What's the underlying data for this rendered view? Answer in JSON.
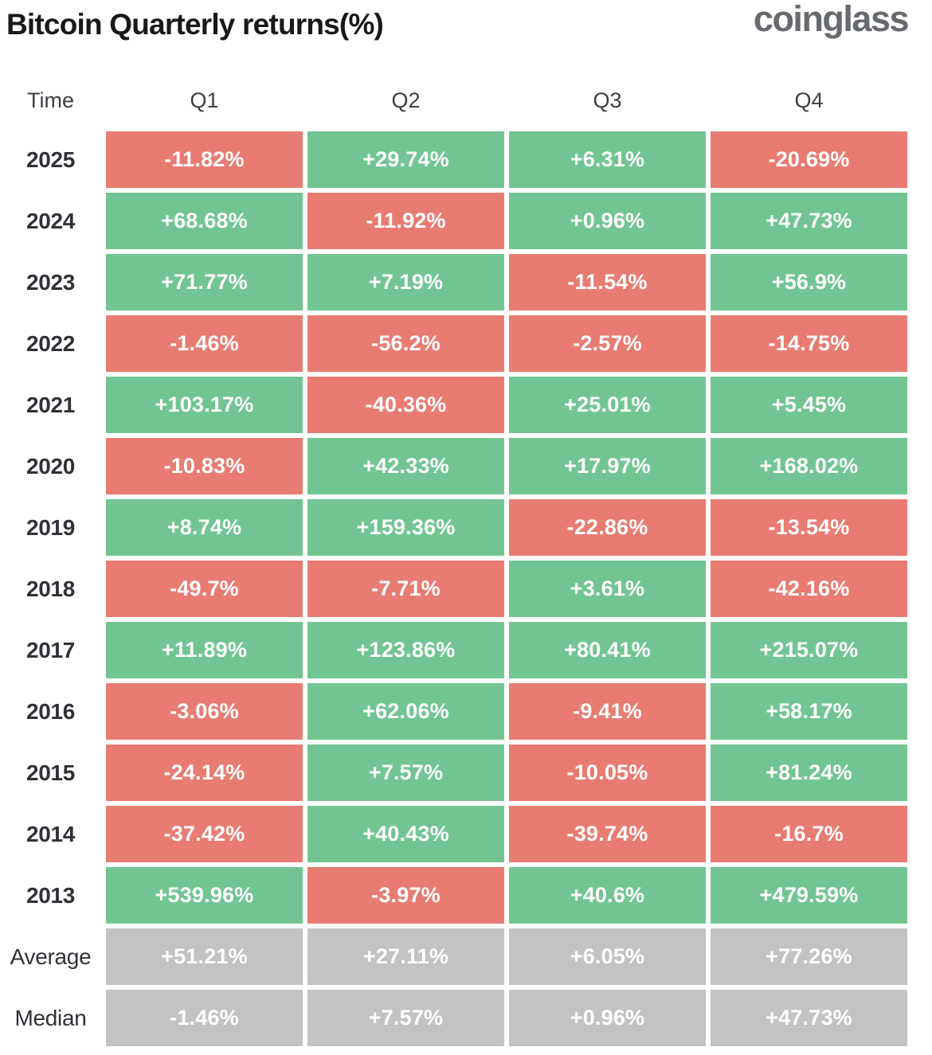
{
  "page": {
    "title": "Bitcoin Quarterly returns(%)",
    "brand": "coinglass"
  },
  "table": {
    "columns": [
      "Time",
      "Q1",
      "Q2",
      "Q3",
      "Q4"
    ],
    "rows": [
      {
        "label": "2025",
        "kind": "year",
        "cells": [
          "-11.82%",
          "+29.74%",
          "+6.31%",
          "-20.69%"
        ]
      },
      {
        "label": "2024",
        "kind": "year",
        "cells": [
          "+68.68%",
          "-11.92%",
          "+0.96%",
          "+47.73%"
        ]
      },
      {
        "label": "2023",
        "kind": "year",
        "cells": [
          "+71.77%",
          "+7.19%",
          "-11.54%",
          "+56.9%"
        ]
      },
      {
        "label": "2022",
        "kind": "year",
        "cells": [
          "-1.46%",
          "-56.2%",
          "-2.57%",
          "-14.75%"
        ]
      },
      {
        "label": "2021",
        "kind": "year",
        "cells": [
          "+103.17%",
          "-40.36%",
          "+25.01%",
          "+5.45%"
        ]
      },
      {
        "label": "2020",
        "kind": "year",
        "cells": [
          "-10.83%",
          "+42.33%",
          "+17.97%",
          "+168.02%"
        ]
      },
      {
        "label": "2019",
        "kind": "year",
        "cells": [
          "+8.74%",
          "+159.36%",
          "-22.86%",
          "-13.54%"
        ]
      },
      {
        "label": "2018",
        "kind": "year",
        "cells": [
          "-49.7%",
          "-7.71%",
          "+3.61%",
          "-42.16%"
        ]
      },
      {
        "label": "2017",
        "kind": "year",
        "cells": [
          "+11.89%",
          "+123.86%",
          "+80.41%",
          "+215.07%"
        ]
      },
      {
        "label": "2016",
        "kind": "year",
        "cells": [
          "-3.06%",
          "+62.06%",
          "-9.41%",
          "+58.17%"
        ]
      },
      {
        "label": "2015",
        "kind": "year",
        "cells": [
          "-24.14%",
          "+7.57%",
          "-10.05%",
          "+81.24%"
        ]
      },
      {
        "label": "2014",
        "kind": "year",
        "cells": [
          "-37.42%",
          "+40.43%",
          "-39.74%",
          "-16.7%"
        ]
      },
      {
        "label": "2013",
        "kind": "year",
        "cells": [
          "+539.96%",
          "-3.97%",
          "+40.6%",
          "+479.59%"
        ]
      },
      {
        "label": "Average",
        "kind": "stat",
        "cells": [
          "+51.21%",
          "+27.11%",
          "+6.05%",
          "+77.26%"
        ]
      },
      {
        "label": "Median",
        "kind": "stat",
        "cells": [
          "-1.46%",
          "+7.57%",
          "+0.96%",
          "+47.73%"
        ]
      }
    ]
  },
  "colors": {
    "positive": "#72C592",
    "negative": "#E87C73",
    "summary": "#C3C3C3",
    "cell_text": "#FFFFFF",
    "title_text": "#17191C",
    "label_text": "#2F3237",
    "header_text": "#3C3F45",
    "brand_text": "#66696D"
  },
  "chart_data": {
    "type": "table",
    "title": "Bitcoin Quarterly returns(%)",
    "columns": [
      "Q1",
      "Q2",
      "Q3",
      "Q4"
    ],
    "row_labels": [
      "2025",
      "2024",
      "2023",
      "2022",
      "2021",
      "2020",
      "2019",
      "2018",
      "2017",
      "2016",
      "2015",
      "2014",
      "2013",
      "Average",
      "Median"
    ],
    "values_pct": [
      [
        -11.82,
        29.74,
        6.31,
        -20.69
      ],
      [
        68.68,
        -11.92,
        0.96,
        47.73
      ],
      [
        71.77,
        7.19,
        -11.54,
        56.9
      ],
      [
        -1.46,
        -56.2,
        -2.57,
        -14.75
      ],
      [
        103.17,
        -40.36,
        25.01,
        5.45
      ],
      [
        -10.83,
        42.33,
        17.97,
        168.02
      ],
      [
        8.74,
        159.36,
        -22.86,
        -13.54
      ],
      [
        -49.7,
        -7.71,
        3.61,
        -42.16
      ],
      [
        11.89,
        123.86,
        80.41,
        215.07
      ],
      [
        -3.06,
        62.06,
        -9.41,
        58.17
      ],
      [
        -24.14,
        7.57,
        -10.05,
        81.24
      ],
      [
        -37.42,
        40.43,
        -39.74,
        -16.7
      ],
      [
        539.96,
        -3.97,
        40.6,
        479.59
      ],
      [
        51.21,
        27.11,
        6.05,
        77.26
      ],
      [
        -1.46,
        7.57,
        0.96,
        47.73
      ]
    ],
    "legend_position": "none",
    "color_coding": "green = positive quarterly return, red = negative quarterly return, gray = summary rows (Average, Median)"
  }
}
